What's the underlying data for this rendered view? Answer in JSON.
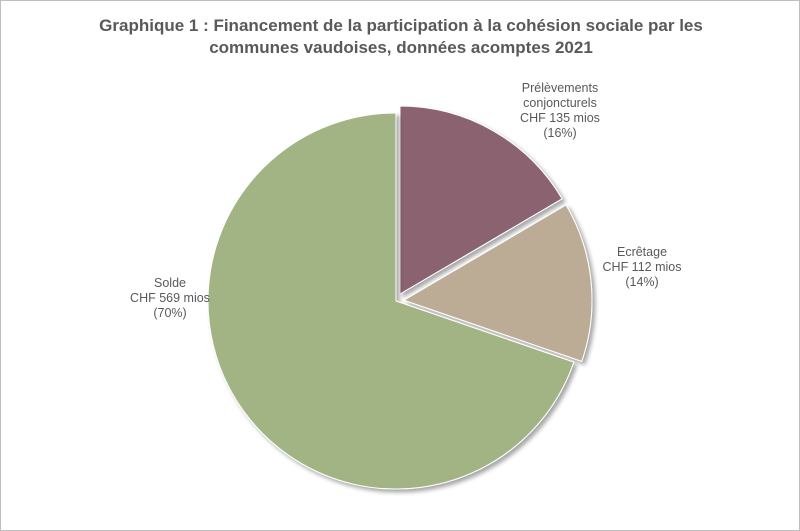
{
  "chart_data": {
    "type": "pie",
    "title_lines": [
      "Graphique 1 : Financement de la participation à la cohésion sociale par les",
      "communes vaudoises, données acomptes 2021"
    ],
    "slices": [
      {
        "name": "Prélèvements conjoncturels",
        "value": 135,
        "percent": 16,
        "label_lines": [
          "Prélèvements",
          "conjoncturels",
          "CHF 135 mios",
          "(16%)"
        ],
        "color": "#8b6470",
        "exploded": true
      },
      {
        "name": "Ecrêtage",
        "value": 112,
        "percent": 14,
        "label_lines": [
          "Ecrêtage",
          "CHF 112 mios",
          "(14%)"
        ],
        "color": "#bcac96",
        "exploded": true
      },
      {
        "name": "Solde",
        "value": 569,
        "percent": 70,
        "label_lines": [
          "Solde",
          "CHF 569 mios",
          "(70%)"
        ],
        "color": "#a2b384",
        "exploded": false
      }
    ]
  }
}
